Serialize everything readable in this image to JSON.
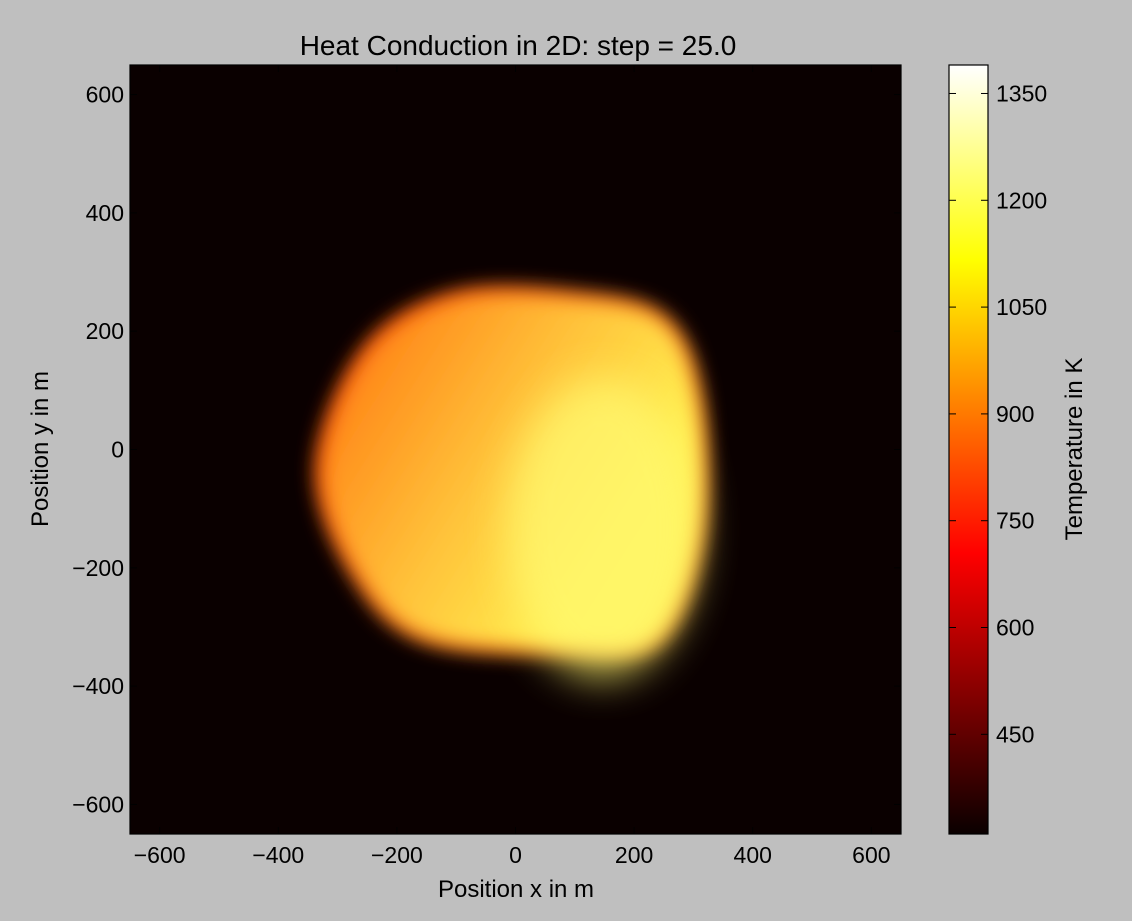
{
  "chart_data": {
    "type": "heatmap",
    "title": "Heat Conduction in 2D: step = 25.0",
    "xlabel": "Position x in m",
    "ylabel": "Position y in m",
    "colorbar_label": "Temperature in K",
    "colormap": "hot",
    "xlim": [
      -650,
      650
    ],
    "ylim": [
      -650,
      650
    ],
    "xticks": [
      -600,
      -400,
      -200,
      0,
      200,
      400,
      600
    ],
    "yticks": [
      -600,
      -400,
      -200,
      0,
      200,
      400,
      600
    ],
    "xtick_labels": [
      "−600",
      "−400",
      "−200",
      "0",
      "200",
      "400",
      "600"
    ],
    "ytick_labels": [
      "−600",
      "−400",
      "−200",
      "0",
      "200",
      "400",
      "600"
    ],
    "colorbar_range": [
      310,
      1390
    ],
    "colorbar_ticks": [
      450,
      600,
      750,
      900,
      1050,
      1200,
      1350
    ],
    "colorbar_tick_labels": [
      "450",
      "600",
      "750",
      "900",
      "1050",
      "1200",
      "1350"
    ],
    "background_temperature": 310,
    "hot_region": {
      "outline": [
        [
          -330,
          -30
        ],
        [
          -250,
          170
        ],
        [
          -100,
          260
        ],
        [
          100,
          260
        ],
        [
          250,
          220
        ],
        [
          310,
          80
        ],
        [
          310,
          -150
        ],
        [
          240,
          -320
        ],
        [
          100,
          -340
        ],
        [
          -150,
          -320
        ],
        [
          -270,
          -210
        ]
      ],
      "temperature_min": 950,
      "temperature_max": 1250,
      "hottest_point": [
        180,
        -150
      ],
      "coolest_point": [
        -260,
        130
      ]
    }
  }
}
